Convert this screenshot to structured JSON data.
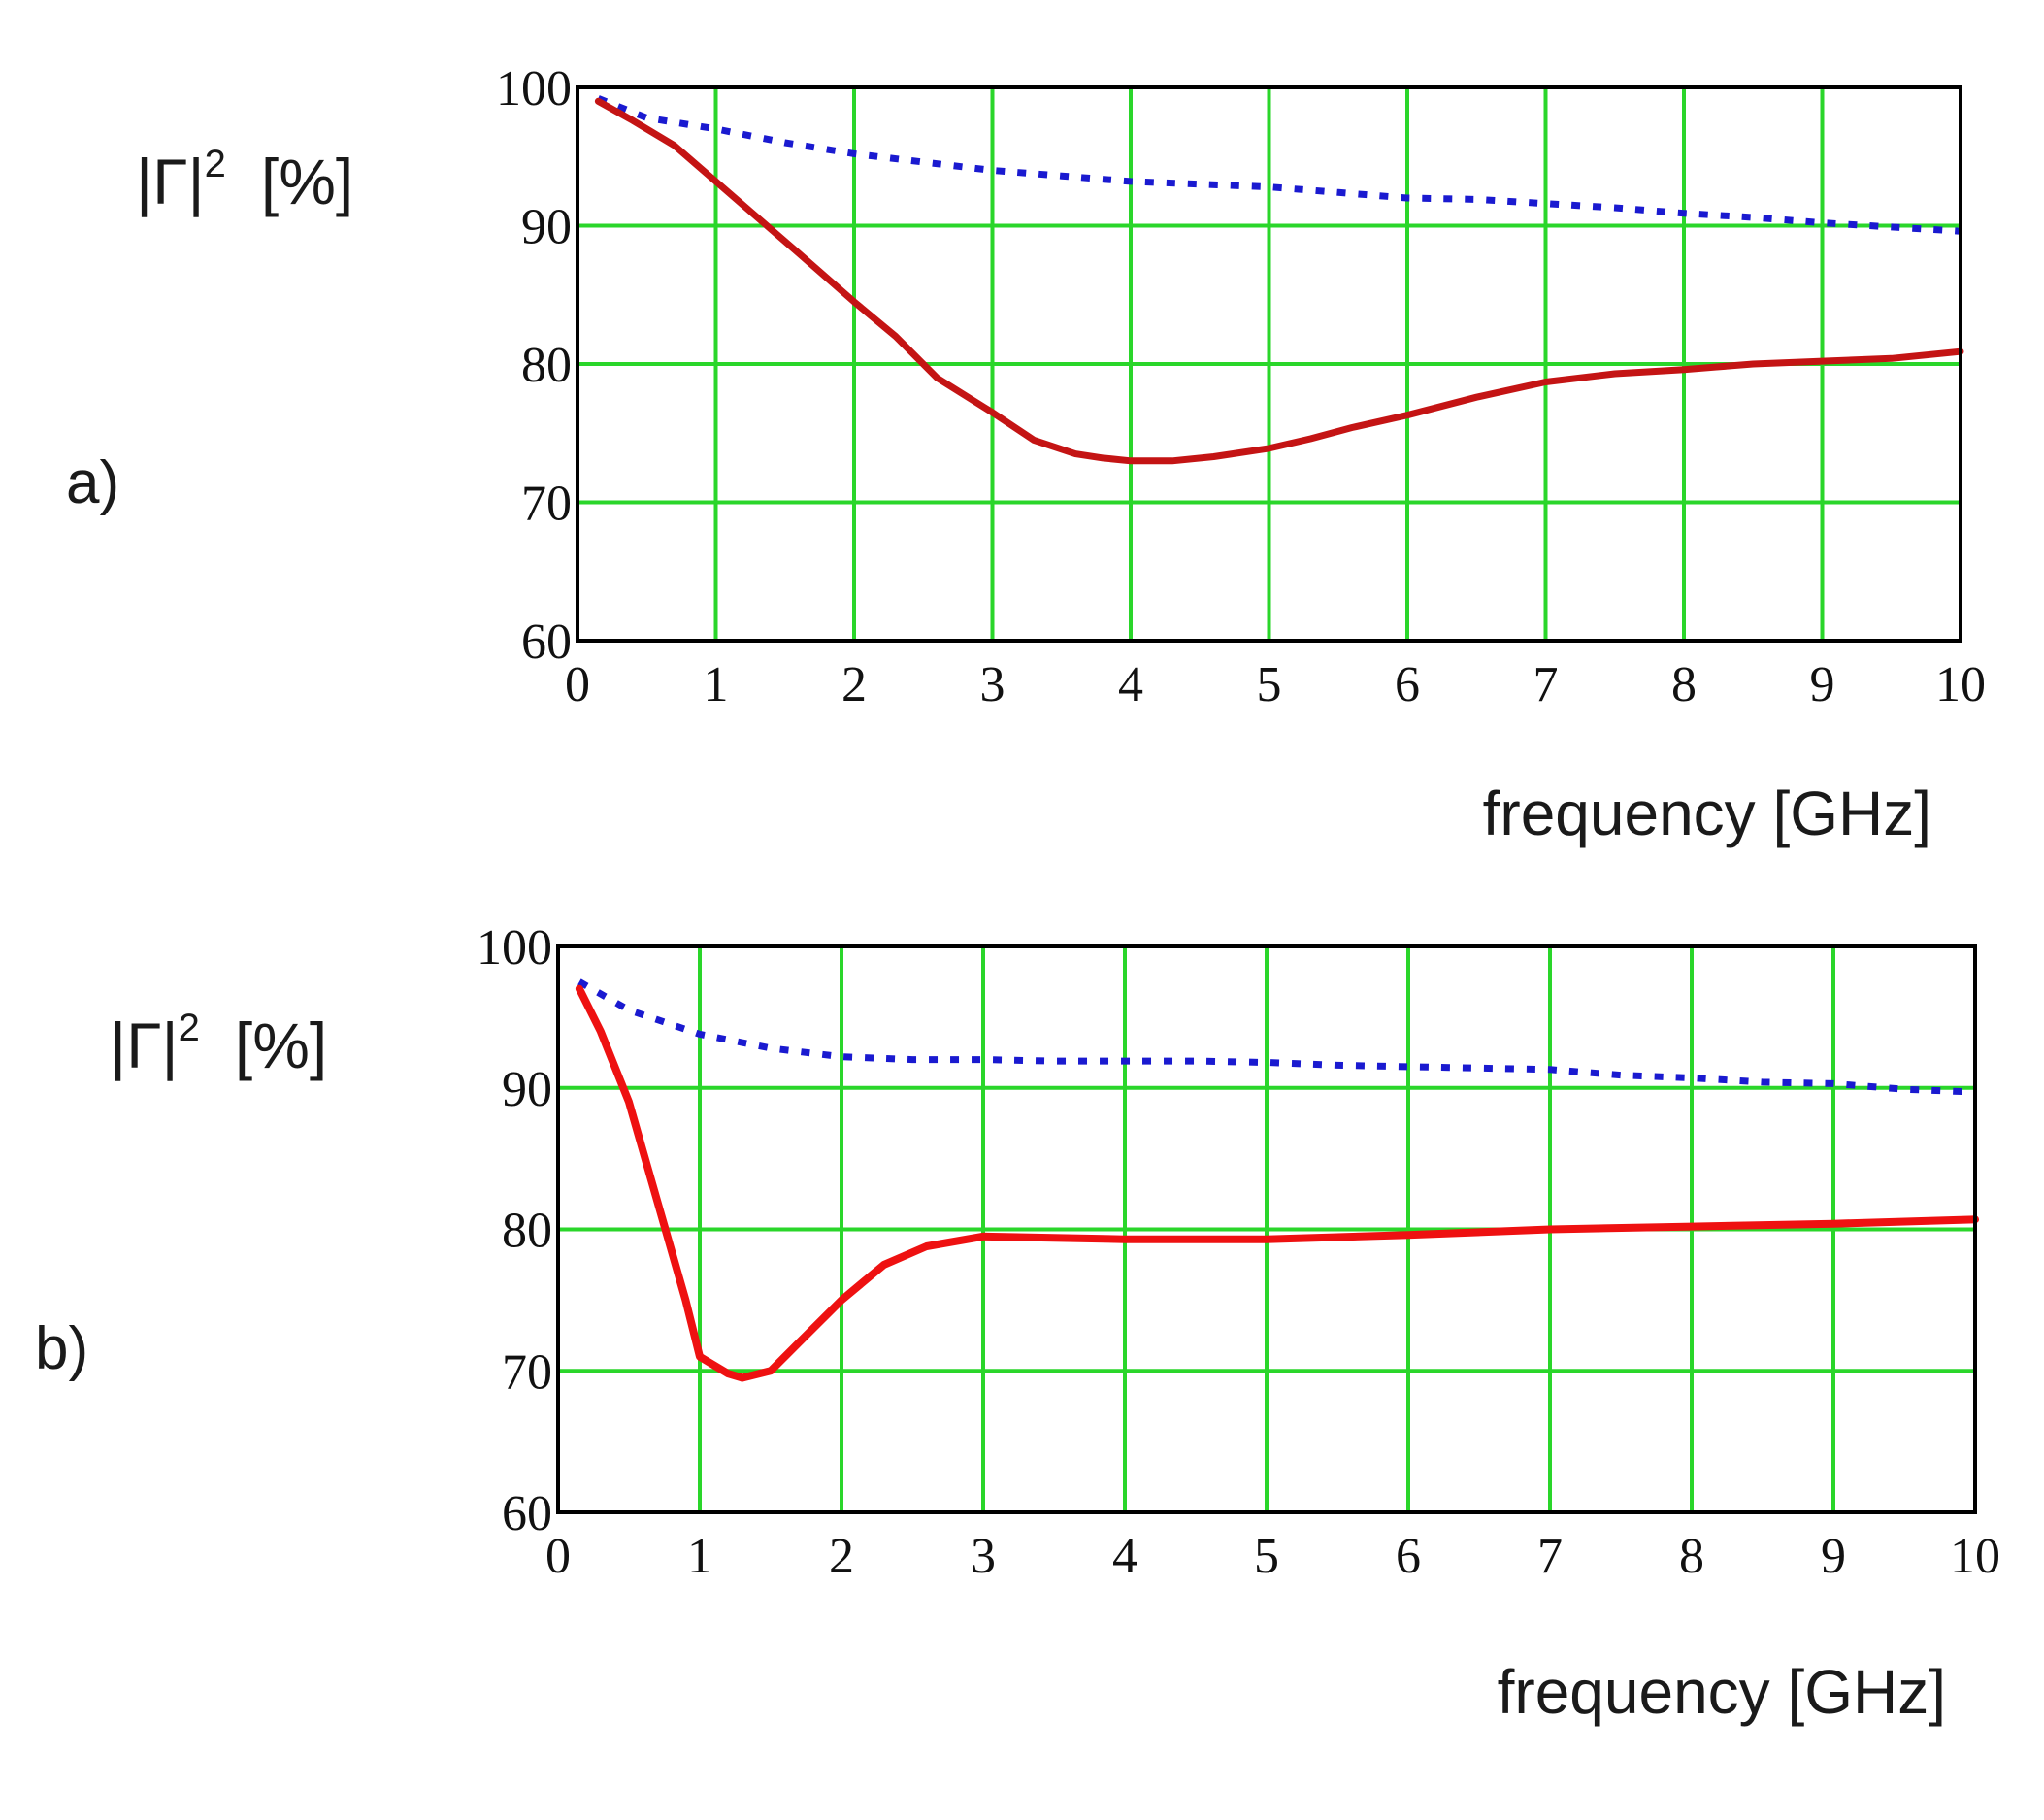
{
  "colors": {
    "grid": "#2ad62a",
    "frame": "#000000",
    "dotted_series": "#1a1ad0",
    "solid_series_a": "#c41414",
    "solid_series_b": "#ee1111",
    "text": "#1a1a1a"
  },
  "chart_data": [
    {
      "type": "line",
      "panel_label": "a)",
      "ylabel": {
        "main": "|Γ|",
        "sup": "2",
        "unit": "[%]"
      },
      "xlabel": "frequency [GHz]",
      "xlim": [
        0,
        10
      ],
      "ylim": [
        60,
        100
      ],
      "grid": true,
      "xticks": [
        "0",
        "1",
        "2",
        "3",
        "4",
        "5",
        "6",
        "7",
        "8",
        "9",
        "10"
      ],
      "yticks": [
        "60",
        "70",
        "80",
        "90",
        "100"
      ],
      "series": [
        {
          "name": "dotted",
          "style": "dotted",
          "x": [
            0.15,
            0.5,
            1,
            1.5,
            2,
            2.5,
            3,
            3.5,
            4,
            4.5,
            5,
            5.5,
            6,
            6.5,
            7,
            7.5,
            8,
            8.5,
            9,
            9.5,
            10
          ],
          "y": [
            99.2,
            97.8,
            97.0,
            96.0,
            95.2,
            94.6,
            94.0,
            93.6,
            93.2,
            93.0,
            92.8,
            92.4,
            92.0,
            91.9,
            91.6,
            91.3,
            90.9,
            90.6,
            90.2,
            89.9,
            89.6
          ]
        },
        {
          "name": "solid",
          "style": "solid",
          "x": [
            0.15,
            0.4,
            0.7,
            1,
            1.3,
            1.6,
            2,
            2.3,
            2.6,
            3,
            3.3,
            3.6,
            3.8,
            4,
            4.3,
            4.6,
            5,
            5.3,
            5.6,
            6,
            6.5,
            7,
            7.5,
            8,
            8.5,
            9,
            9.5,
            10
          ],
          "y": [
            99.0,
            97.6,
            95.8,
            93.2,
            90.6,
            88.0,
            84.5,
            82.0,
            79.0,
            76.5,
            74.5,
            73.5,
            73.2,
            73.0,
            73.0,
            73.3,
            73.9,
            74.6,
            75.4,
            76.3,
            77.6,
            78.7,
            79.3,
            79.6,
            80.0,
            80.2,
            80.4,
            80.9
          ]
        }
      ]
    },
    {
      "type": "line",
      "panel_label": "b)",
      "ylabel": {
        "main": "|Γ|",
        "sup": "2",
        "unit": "[%]"
      },
      "xlabel": "frequency [GHz]",
      "xlim": [
        0,
        10
      ],
      "ylim": [
        60,
        100
      ],
      "grid": true,
      "xticks": [
        "0",
        "1",
        "2",
        "3",
        "4",
        "5",
        "6",
        "7",
        "8",
        "9",
        "10"
      ],
      "yticks": [
        "60",
        "70",
        "80",
        "90",
        "100"
      ],
      "series": [
        {
          "name": "dotted",
          "style": "dotted",
          "x": [
            0.15,
            0.5,
            1,
            1.5,
            2,
            2.5,
            3,
            3.5,
            4,
            4.5,
            5,
            5.5,
            6,
            6.5,
            7,
            7.5,
            8,
            8.5,
            9,
            9.5,
            10
          ],
          "y": [
            97.5,
            95.5,
            93.8,
            92.8,
            92.2,
            92.0,
            92.0,
            91.9,
            91.9,
            91.9,
            91.8,
            91.6,
            91.5,
            91.4,
            91.3,
            90.9,
            90.7,
            90.4,
            90.3,
            89.9,
            89.7
          ]
        },
        {
          "name": "solid",
          "style": "solid",
          "x": [
            0.15,
            0.3,
            0.5,
            0.7,
            0.9,
            1.0,
            1.2,
            1.3,
            1.5,
            1.7,
            2.0,
            2.3,
            2.6,
            3.0,
            3.5,
            4,
            5,
            6,
            7,
            8,
            9,
            10
          ],
          "y": [
            97.0,
            94.0,
            89.0,
            82.0,
            75.0,
            71.0,
            69.8,
            69.5,
            70.0,
            72.0,
            75.0,
            77.5,
            78.8,
            79.5,
            79.4,
            79.3,
            79.3,
            79.6,
            80.0,
            80.2,
            80.4,
            80.7
          ]
        }
      ]
    }
  ]
}
